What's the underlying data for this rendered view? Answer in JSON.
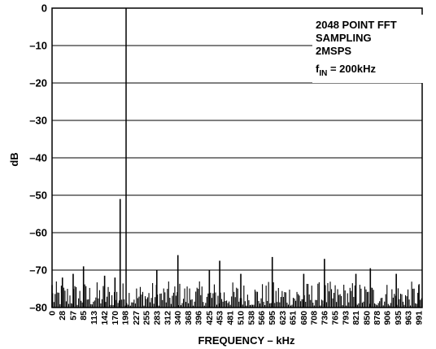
{
  "chart_data": {
    "type": "bar",
    "title": "",
    "xlabel": "FREQUENCY – kHz",
    "ylabel": "dB",
    "ylim": [
      -80,
      0
    ],
    "xlim": [
      0,
      1000
    ],
    "y_ticks": [
      "0",
      "–10",
      "–20",
      "–30",
      "–40",
      "–50",
      "–60",
      "–70",
      "–80"
    ],
    "x_ticks": [
      "0",
      "28",
      "57",
      "85",
      "113",
      "142",
      "170",
      "198",
      "227",
      "255",
      "283",
      "312",
      "340",
      "368",
      "396",
      "425",
      "453",
      "481",
      "510",
      "538",
      "566",
      "595",
      "623",
      "651",
      "680",
      "708",
      "736",
      "765",
      "793",
      "821",
      "850",
      "878",
      "906",
      "935",
      "963",
      "991"
    ],
    "grid": "horizontal",
    "annotation": {
      "lines": [
        "2048 POINT FFT",
        "SAMPLING",
        "2MSPS"
      ],
      "fin_main": "f",
      "fin_sub": "IN",
      "fin_value": " = 200kHz"
    },
    "series": [
      {
        "points": [
          [
            200,
            0
          ],
          [
            184,
            -51
          ],
          [
            340,
            -66
          ],
          [
            453,
            -67.5
          ],
          [
            595,
            -66.5
          ],
          [
            736,
            -67
          ],
          [
            860,
            -69.5
          ],
          [
            85,
            -69
          ],
          [
            57,
            -71
          ],
          [
            28,
            -72
          ],
          [
            142,
            -71.5
          ],
          [
            170,
            -72
          ],
          [
            283,
            -70
          ],
          [
            425,
            -70
          ],
          [
            510,
            -71
          ],
          [
            680,
            -71
          ],
          [
            821,
            -71
          ],
          [
            930,
            -71
          ],
          [
            991,
            -74
          ],
          [
            0,
            -74
          ]
        ],
        "noise_floor": [
          -79.5,
          -73
        ]
      }
    ]
  }
}
